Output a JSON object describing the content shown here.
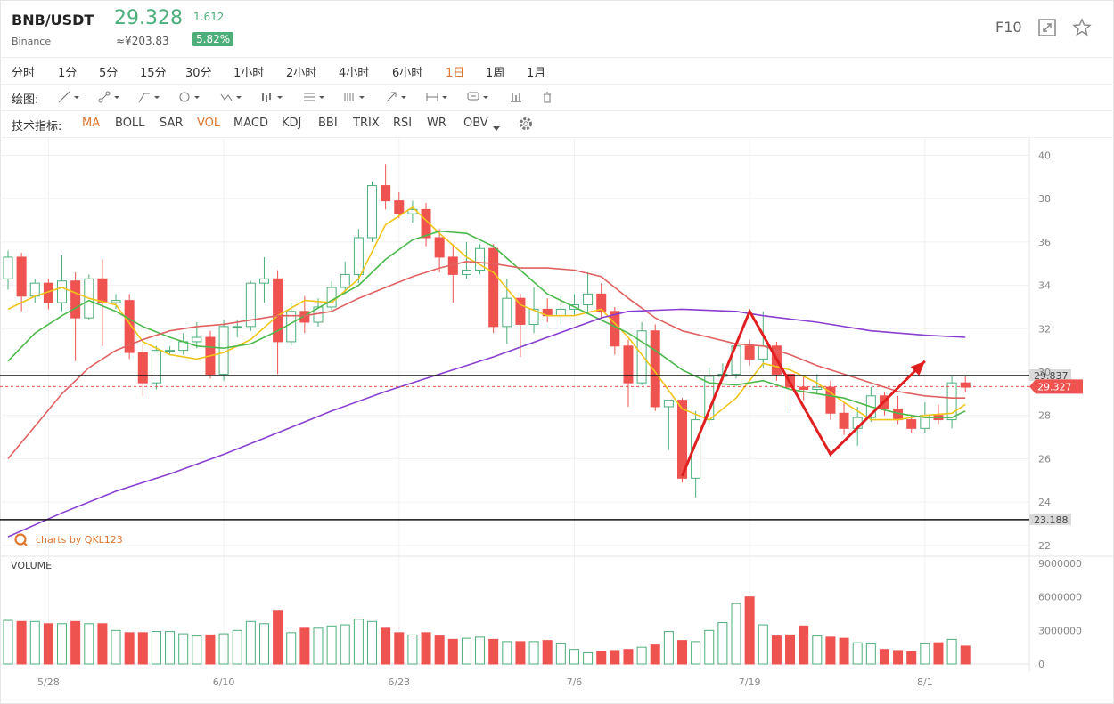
{
  "header": {
    "pair": "BNB/USDT",
    "exchange": "Binance",
    "price": "29.328",
    "cny": "≈¥203.83",
    "change": "1.612",
    "change_pct": "5.82%",
    "f10": "F10",
    "colors": {
      "up": "#4caf7a",
      "down": "#ef5350",
      "active": "#e0762f"
    }
  },
  "timeframes": [
    {
      "label": "分时",
      "active": false
    },
    {
      "label": "1分",
      "active": false
    },
    {
      "label": "5分",
      "active": false
    },
    {
      "label": "15分",
      "active": false
    },
    {
      "label": "30分",
      "active": false
    },
    {
      "label": "1小时",
      "active": false
    },
    {
      "label": "2小时",
      "active": false
    },
    {
      "label": "4小时",
      "active": false
    },
    {
      "label": "6小时",
      "active": false
    },
    {
      "label": "1日",
      "active": true
    },
    {
      "label": "1周",
      "active": false
    },
    {
      "label": "1月",
      "active": false
    }
  ],
  "drawing": {
    "label": "绘图:",
    "tools": [
      "line-tool-icon",
      "segment-tool-icon",
      "channel-tool-icon",
      "circle-tool-icon",
      "zigzag-tool-icon",
      "pattern-tool-icon",
      "fib-tool-icon",
      "gann-tool-icon",
      "arrow-tool-icon",
      "measure-tool-icon",
      "text-tool-icon",
      "bars-tool-icon",
      "trash-icon"
    ]
  },
  "indicators": {
    "label": "技术指标:",
    "items": [
      {
        "label": "MA",
        "active": true
      },
      {
        "label": "BOLL",
        "active": false
      },
      {
        "label": "SAR",
        "active": false
      },
      {
        "label": "VOL",
        "active": true
      },
      {
        "label": "MACD",
        "active": false
      },
      {
        "label": "KDJ",
        "active": false
      },
      {
        "label": "BBI",
        "active": false
      },
      {
        "label": "TRIX",
        "active": false
      },
      {
        "label": "RSI",
        "active": false
      },
      {
        "label": "WR",
        "active": false
      },
      {
        "label": "OBV",
        "active": false
      }
    ]
  },
  "chart_data": {
    "type": "candlestick",
    "watermark": "charts by QKL123",
    "volume_label": "VOLUME",
    "y_ticks": [
      22,
      24,
      26,
      28,
      30,
      32,
      34,
      36,
      38,
      40
    ],
    "y_range": [
      21.5,
      40.8
    ],
    "vol_ticks": [
      {
        "v": 0,
        "label": "0"
      },
      {
        "v": 3000000,
        "label": "3000000"
      },
      {
        "v": 6000000,
        "label": "6000000"
      },
      {
        "v": 9000000,
        "label": "9000000"
      }
    ],
    "x_ticks": [
      {
        "i": 3,
        "label": "5/28"
      },
      {
        "i": 16,
        "label": "6/10"
      },
      {
        "i": 29,
        "label": "6/23"
      },
      {
        "i": 42,
        "label": "7/6"
      },
      {
        "i": 55,
        "label": "7/19"
      },
      {
        "i": 68,
        "label": "8/1"
      }
    ],
    "hlines": [
      {
        "value": 29.837,
        "label": "29.837"
      },
      {
        "value": 23.188,
        "label": "23.188"
      }
    ],
    "current_price": {
      "value": 29.327,
      "label": "29.327"
    },
    "candles": [
      [
        34.3,
        35.3,
        35.6,
        33.8
      ],
      [
        35.3,
        33.5,
        35.5,
        32.8
      ],
      [
        33.5,
        34.1,
        34.3,
        33.2
      ],
      [
        34.1,
        33.2,
        34.3,
        32.9
      ],
      [
        33.2,
        34.2,
        35.4,
        32.8
      ],
      [
        34.2,
        32.5,
        34.6,
        30.5
      ],
      [
        32.5,
        34.3,
        34.5,
        32.4
      ],
      [
        34.3,
        33.2,
        35.2,
        31.2
      ],
      [
        33.2,
        33.3,
        33.6,
        32.9
      ],
      [
        33.3,
        30.9,
        33.6,
        30.6
      ],
      [
        30.9,
        29.5,
        31.3,
        28.9
      ],
      [
        29.5,
        31.0,
        31.2,
        29.2
      ],
      [
        31.0,
        31.0,
        31.2,
        30.8
      ],
      [
        31.0,
        31.4,
        31.8,
        30.8
      ],
      [
        31.4,
        31.6,
        32.3,
        31.1
      ],
      [
        31.6,
        29.9,
        31.9,
        29.7
      ],
      [
        29.9,
        32.1,
        32.4,
        29.6
      ],
      [
        32.1,
        32.1,
        32.4,
        31.6
      ],
      [
        32.1,
        34.1,
        34.2,
        31.9
      ],
      [
        34.1,
        34.3,
        35.3,
        33.2
      ],
      [
        34.3,
        31.4,
        34.7,
        29.9
      ],
      [
        31.4,
        32.8,
        33.2,
        31.2
      ],
      [
        32.8,
        32.3,
        33.5,
        31.8
      ],
      [
        32.3,
        33.0,
        33.4,
        32.1
      ],
      [
        33.0,
        33.9,
        34.2,
        32.8
      ],
      [
        33.9,
        34.5,
        35.1,
        33.6
      ],
      [
        34.5,
        36.2,
        36.6,
        34.1
      ],
      [
        36.2,
        38.6,
        38.8,
        36.0
      ],
      [
        38.6,
        37.9,
        39.6,
        37.5
      ],
      [
        37.9,
        37.3,
        38.3,
        37.1
      ],
      [
        37.3,
        37.5,
        37.9,
        36.9
      ],
      [
        37.5,
        36.2,
        37.8,
        35.8
      ],
      [
        36.2,
        35.3,
        36.6,
        34.6
      ],
      [
        35.3,
        34.5,
        35.9,
        33.2
      ],
      [
        34.5,
        34.7,
        36.0,
        34.3
      ],
      [
        34.7,
        35.7,
        35.9,
        34.5
      ],
      [
        35.7,
        32.1,
        35.9,
        31.8
      ],
      [
        32.1,
        33.4,
        34.3,
        31.3
      ],
      [
        33.4,
        32.2,
        33.6,
        30.7
      ],
      [
        32.2,
        32.9,
        33.9,
        31.8
      ],
      [
        32.9,
        32.6,
        33.4,
        32.3
      ],
      [
        32.6,
        32.9,
        33.5,
        32.2
      ],
      [
        32.9,
        33.1,
        33.6,
        32.6
      ],
      [
        33.1,
        33.6,
        34.6,
        32.7
      ],
      [
        33.6,
        32.8,
        34.1,
        32.5
      ],
      [
        32.8,
        31.2,
        33.0,
        30.8
      ],
      [
        31.2,
        29.5,
        31.5,
        28.4
      ],
      [
        29.5,
        31.9,
        32.3,
        29.4
      ],
      [
        31.9,
        28.4,
        32.2,
        28.2
      ],
      [
        28.4,
        28.7,
        28.7,
        26.4
      ],
      [
        28.7,
        25.1,
        28.8,
        24.9
      ],
      [
        25.1,
        27.8,
        28.2,
        24.2
      ],
      [
        27.8,
        29.8,
        30.2,
        27.6
      ],
      [
        29.8,
        29.9,
        30.4,
        29.6
      ],
      [
        29.9,
        31.2,
        31.4,
        29.7
      ],
      [
        31.2,
        30.6,
        31.5,
        30.3
      ],
      [
        30.6,
        31.2,
        32.8,
        30.2
      ],
      [
        31.2,
        29.9,
        31.4,
        29.6
      ],
      [
        29.9,
        29.3,
        30.2,
        28.2
      ],
      [
        29.3,
        29.2,
        29.8,
        28.7
      ],
      [
        29.2,
        29.3,
        29.9,
        29.0
      ],
      [
        29.3,
        28.1,
        29.6,
        27.8
      ],
      [
        28.1,
        27.4,
        28.6,
        27.1
      ],
      [
        27.4,
        27.9,
        28.4,
        26.6
      ],
      [
        27.9,
        28.9,
        29.3,
        27.7
      ],
      [
        28.9,
        28.3,
        29.1,
        28.0
      ],
      [
        28.3,
        27.8,
        28.9,
        27.6
      ],
      [
        27.8,
        27.4,
        28.0,
        27.2
      ],
      [
        27.4,
        28.0,
        28.6,
        27.2
      ],
      [
        28.0,
        27.8,
        28.5,
        27.6
      ],
      [
        27.8,
        29.5,
        29.8,
        27.4
      ],
      [
        29.5,
        29.3,
        29.8,
        29.1
      ]
    ],
    "volume": [
      3.9,
      3.8,
      3.8,
      3.6,
      3.6,
      3.8,
      3.6,
      3.6,
      3.0,
      2.8,
      2.8,
      2.9,
      2.9,
      2.7,
      2.5,
      2.6,
      2.7,
      3.0,
      3.8,
      3.6,
      4.8,
      2.8,
      3.2,
      3.2,
      3.4,
      3.5,
      4.0,
      3.8,
      3.2,
      2.8,
      2.6,
      2.8,
      2.5,
      2.2,
      2.3,
      2.4,
      2.2,
      2.0,
      2.0,
      2.0,
      2.1,
      1.8,
      1.3,
      1.0,
      1.1,
      1.2,
      1.3,
      1.5,
      1.7,
      2.9,
      2.1,
      2.0,
      3.0,
      3.7,
      5.4,
      6.0,
      3.5,
      2.5,
      2.6,
      3.4,
      2.5,
      2.4,
      2.3,
      1.9,
      1.8,
      1.3,
      1.2,
      1.1,
      1.8,
      1.9,
      2.2,
      1.6
    ],
    "ma_series": [
      {
        "name": "MA5",
        "color": "#f0c419",
        "values": [
          [
            0,
            32.9
          ],
          [
            2,
            33.5
          ],
          [
            4,
            33.9
          ],
          [
            6,
            33.4
          ],
          [
            8,
            33.1
          ],
          [
            10,
            31.4
          ],
          [
            12,
            30.8
          ],
          [
            14,
            30.6
          ],
          [
            16,
            30.9
          ],
          [
            18,
            31.5
          ],
          [
            20,
            32.6
          ],
          [
            22,
            33.3
          ],
          [
            24,
            33.2
          ],
          [
            26,
            34.3
          ],
          [
            28,
            36.8
          ],
          [
            30,
            37.6
          ],
          [
            32,
            36.4
          ],
          [
            34,
            35.3
          ],
          [
            36,
            34.6
          ],
          [
            38,
            33.1
          ],
          [
            40,
            32.6
          ],
          [
            42,
            32.6
          ],
          [
            44,
            32.9
          ],
          [
            46,
            31.6
          ],
          [
            48,
            30.0
          ],
          [
            50,
            28.3
          ],
          [
            52,
            27.8
          ],
          [
            54,
            28.8
          ],
          [
            56,
            30.4
          ],
          [
            58,
            30.1
          ],
          [
            60,
            29.5
          ],
          [
            62,
            28.6
          ],
          [
            64,
            27.8
          ],
          [
            66,
            27.8
          ],
          [
            68,
            28.0
          ],
          [
            70,
            28.1
          ],
          [
            71,
            28.5
          ]
        ]
      },
      {
        "name": "MA10",
        "color": "#4cb94c",
        "values": [
          [
            0,
            30.5
          ],
          [
            2,
            31.8
          ],
          [
            4,
            32.6
          ],
          [
            6,
            33.3
          ],
          [
            8,
            32.8
          ],
          [
            10,
            32.1
          ],
          [
            12,
            31.6
          ],
          [
            14,
            31.2
          ],
          [
            16,
            31.1
          ],
          [
            18,
            31.3
          ],
          [
            20,
            31.9
          ],
          [
            22,
            32.6
          ],
          [
            24,
            33.3
          ],
          [
            26,
            34.0
          ],
          [
            28,
            35.2
          ],
          [
            30,
            36.1
          ],
          [
            32,
            36.5
          ],
          [
            34,
            36.4
          ],
          [
            36,
            35.8
          ],
          [
            38,
            34.7
          ],
          [
            40,
            33.6
          ],
          [
            42,
            33.0
          ],
          [
            44,
            32.4
          ],
          [
            46,
            31.8
          ],
          [
            48,
            31.0
          ],
          [
            50,
            30.1
          ],
          [
            52,
            29.5
          ],
          [
            54,
            29.4
          ],
          [
            56,
            29.6
          ],
          [
            58,
            29.2
          ],
          [
            60,
            29.0
          ],
          [
            62,
            28.8
          ],
          [
            64,
            28.4
          ],
          [
            66,
            28.1
          ],
          [
            68,
            27.9
          ],
          [
            70,
            27.9
          ],
          [
            71,
            28.2
          ]
        ]
      },
      {
        "name": "MA20",
        "color": "#e06161",
        "values": [
          [
            0,
            26.0
          ],
          [
            2,
            27.5
          ],
          [
            4,
            29.0
          ],
          [
            6,
            30.2
          ],
          [
            8,
            31.0
          ],
          [
            10,
            31.5
          ],
          [
            12,
            31.9
          ],
          [
            14,
            32.1
          ],
          [
            16,
            32.2
          ],
          [
            18,
            32.4
          ],
          [
            20,
            32.6
          ],
          [
            22,
            32.6
          ],
          [
            24,
            32.8
          ],
          [
            26,
            33.4
          ],
          [
            28,
            33.9
          ],
          [
            30,
            34.4
          ],
          [
            32,
            34.8
          ],
          [
            34,
            35.1
          ],
          [
            36,
            35.0
          ],
          [
            38,
            34.8
          ],
          [
            40,
            34.8
          ],
          [
            42,
            34.7
          ],
          [
            44,
            34.4
          ],
          [
            46,
            33.4
          ],
          [
            48,
            32.5
          ],
          [
            50,
            31.9
          ],
          [
            52,
            31.6
          ],
          [
            54,
            31.3
          ],
          [
            56,
            31.2
          ],
          [
            58,
            30.8
          ],
          [
            60,
            30.3
          ],
          [
            62,
            29.9
          ],
          [
            64,
            29.5
          ],
          [
            66,
            29.1
          ],
          [
            68,
            28.9
          ],
          [
            70,
            28.8
          ],
          [
            71,
            28.8
          ]
        ]
      },
      {
        "name": "MA60",
        "color": "#8a3fd0",
        "values": [
          [
            0,
            22.4
          ],
          [
            4,
            23.5
          ],
          [
            8,
            24.5
          ],
          [
            12,
            25.3
          ],
          [
            16,
            26.2
          ],
          [
            20,
            27.2
          ],
          [
            24,
            28.2
          ],
          [
            28,
            29.1
          ],
          [
            32,
            29.9
          ],
          [
            36,
            30.7
          ],
          [
            40,
            31.6
          ],
          [
            44,
            32.5
          ],
          [
            46,
            32.8
          ],
          [
            50,
            32.9
          ],
          [
            54,
            32.8
          ],
          [
            56,
            32.6
          ],
          [
            60,
            32.3
          ],
          [
            64,
            31.9
          ],
          [
            68,
            31.7
          ],
          [
            71,
            31.6
          ]
        ]
      }
    ],
    "annotations": {
      "color": "#e02020",
      "path": [
        [
          50,
          25.2
        ],
        [
          55,
          32.8
        ],
        [
          61,
          26.2
        ],
        [
          68,
          30.5
        ]
      ]
    }
  }
}
